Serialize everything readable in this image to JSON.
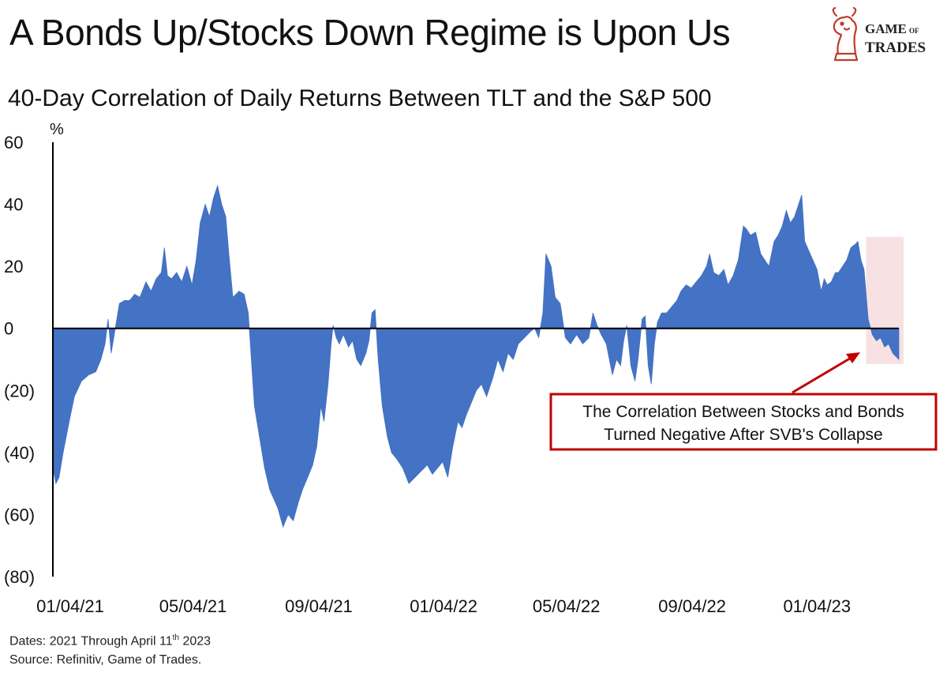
{
  "title": "A Bonds Up/Stocks Down Regime is Upon Us",
  "subtitle": "40-Day Correlation of Daily Returns Between TLT and the S&P 500",
  "logo": {
    "line1": "GAME",
    "line1_small": "OF",
    "line2": "TRADES"
  },
  "footer": {
    "dates_prefix": "Dates: 2021 Through April 11",
    "dates_sup": "th",
    "dates_suffix": " 2023",
    "source": "Source: Refinitiv, Game of Trades."
  },
  "annotation": {
    "line1": "The Correlation Between Stocks and Bonds",
    "line2": "Turned Negative After SVB's Collapse"
  },
  "colors": {
    "area": "#4472C4",
    "highlight": "#F4D7D9",
    "annotation_border": "#C00000",
    "axis": "#000000"
  },
  "chart_data": {
    "type": "area",
    "title": "40-Day Correlation of Daily Returns Between TLT and the S&P 500",
    "ylabel": "%",
    "ylim": [
      -80,
      60
    ],
    "y_ticks": [
      60,
      40,
      20,
      0,
      -20,
      -40,
      -60,
      -80
    ],
    "y_tick_labels": [
      "60",
      "40",
      "20",
      "0",
      "(20)",
      "(40)",
      "(60)",
      "(80)"
    ],
    "x_ticks": [
      "2021-01-04",
      "2021-05-04",
      "2021-09-04",
      "2022-01-04",
      "2022-05-04",
      "2022-09-04",
      "2023-01-04"
    ],
    "x_tick_labels": [
      "01/04/21",
      "05/04/21",
      "09/04/21",
      "01/04/22",
      "05/04/22",
      "09/04/22",
      "01/04/23"
    ],
    "highlight_range": [
      "2023-03-10",
      "2023-04-11"
    ],
    "series": [
      {
        "values": [
          [
            "2021-01-04",
            -45
          ],
          [
            "2021-01-07",
            -50
          ],
          [
            "2021-01-10",
            -48
          ],
          [
            "2021-01-14",
            -40
          ],
          [
            "2021-01-20",
            -30
          ],
          [
            "2021-01-25",
            -22
          ],
          [
            "2021-02-01",
            -17
          ],
          [
            "2021-02-08",
            -15
          ],
          [
            "2021-02-15",
            -14
          ],
          [
            "2021-02-20",
            -10
          ],
          [
            "2021-02-24",
            -5
          ],
          [
            "2021-02-27",
            3
          ],
          [
            "2021-03-02",
            -8
          ],
          [
            "2021-03-06",
            0
          ],
          [
            "2021-03-10",
            8
          ],
          [
            "2021-03-15",
            9
          ],
          [
            "2021-03-20",
            9
          ],
          [
            "2021-03-25",
            11
          ],
          [
            "2021-03-30",
            10
          ],
          [
            "2021-04-05",
            15
          ],
          [
            "2021-04-10",
            12
          ],
          [
            "2021-04-15",
            16
          ],
          [
            "2021-04-20",
            18
          ],
          [
            "2021-04-23",
            26
          ],
          [
            "2021-04-26",
            17
          ],
          [
            "2021-04-30",
            16
          ],
          [
            "2021-05-05",
            18
          ],
          [
            "2021-05-10",
            15
          ],
          [
            "2021-05-15",
            20
          ],
          [
            "2021-05-20",
            14
          ],
          [
            "2021-05-24",
            22
          ],
          [
            "2021-05-28",
            34
          ],
          [
            "2021-06-02",
            40
          ],
          [
            "2021-06-06",
            36
          ],
          [
            "2021-06-10",
            42
          ],
          [
            "2021-06-14",
            46
          ],
          [
            "2021-06-18",
            40
          ],
          [
            "2021-06-22",
            36
          ],
          [
            "2021-06-25",
            24
          ],
          [
            "2021-06-29",
            10
          ],
          [
            "2021-07-05",
            12
          ],
          [
            "2021-07-10",
            11
          ],
          [
            "2021-07-14",
            5
          ],
          [
            "2021-07-17",
            -10
          ],
          [
            "2021-07-20",
            -25
          ],
          [
            "2021-07-25",
            -35
          ],
          [
            "2021-07-30",
            -45
          ],
          [
            "2021-08-04",
            -52
          ],
          [
            "2021-08-08",
            -55
          ],
          [
            "2021-08-12",
            -58
          ],
          [
            "2021-08-17",
            -64
          ],
          [
            "2021-08-22",
            -60
          ],
          [
            "2021-08-27",
            -62
          ],
          [
            "2021-09-01",
            -56
          ],
          [
            "2021-09-05",
            -52
          ],
          [
            "2021-09-10",
            -48
          ],
          [
            "2021-09-15",
            -44
          ],
          [
            "2021-09-19",
            -38
          ],
          [
            "2021-09-23",
            -25
          ],
          [
            "2021-09-26",
            -30
          ],
          [
            "2021-09-30",
            -18
          ],
          [
            "2021-10-03",
            -5
          ],
          [
            "2021-10-05",
            1
          ],
          [
            "2021-10-08",
            -3
          ],
          [
            "2021-10-11",
            -5
          ],
          [
            "2021-10-15",
            -2
          ],
          [
            "2021-10-20",
            -6
          ],
          [
            "2021-10-24",
            -4
          ],
          [
            "2021-10-28",
            -10
          ],
          [
            "2021-11-01",
            -12
          ],
          [
            "2021-11-06",
            -8
          ],
          [
            "2021-11-09",
            -4
          ],
          [
            "2021-11-12",
            5
          ],
          [
            "2021-11-15",
            6
          ],
          [
            "2021-11-18",
            -10
          ],
          [
            "2021-11-22",
            -25
          ],
          [
            "2021-11-27",
            -35
          ],
          [
            "2021-12-01",
            -40
          ],
          [
            "2021-12-06",
            -42
          ],
          [
            "2021-12-12",
            -45
          ],
          [
            "2021-12-18",
            -50
          ],
          [
            "2021-12-24",
            -48
          ],
          [
            "2021-12-30",
            -46
          ],
          [
            "2022-01-05",
            -44
          ],
          [
            "2022-01-10",
            -47
          ],
          [
            "2022-01-15",
            -45
          ],
          [
            "2022-01-20",
            -43
          ],
          [
            "2022-01-25",
            -48
          ],
          [
            "2022-01-30",
            -38
          ],
          [
            "2022-02-04",
            -30
          ],
          [
            "2022-02-08",
            -32
          ],
          [
            "2022-02-12",
            -28
          ],
          [
            "2022-02-17",
            -24
          ],
          [
            "2022-02-22",
            -20
          ],
          [
            "2022-02-27",
            -18
          ],
          [
            "2022-03-04",
            -22
          ],
          [
            "2022-03-10",
            -16
          ],
          [
            "2022-03-15",
            -10
          ],
          [
            "2022-03-20",
            -14
          ],
          [
            "2022-03-25",
            -8
          ],
          [
            "2022-03-30",
            -10
          ],
          [
            "2022-04-04",
            -5
          ],
          [
            "2022-04-10",
            -3
          ],
          [
            "2022-04-16",
            -1
          ],
          [
            "2022-04-20",
            0
          ],
          [
            "2022-04-24",
            -3
          ],
          [
            "2022-04-28",
            5
          ],
          [
            "2022-05-01",
            24
          ],
          [
            "2022-05-06",
            20
          ],
          [
            "2022-05-10",
            10
          ],
          [
            "2022-05-15",
            8
          ],
          [
            "2022-05-20",
            -3
          ],
          [
            "2022-05-25",
            -5
          ],
          [
            "2022-05-31",
            -2
          ],
          [
            "2022-06-06",
            -5
          ],
          [
            "2022-06-12",
            -3
          ],
          [
            "2022-06-16",
            5
          ],
          [
            "2022-06-20",
            1
          ],
          [
            "2022-06-24",
            -2
          ],
          [
            "2022-06-29",
            -5
          ],
          [
            "2022-07-05",
            -15
          ],
          [
            "2022-07-09",
            -10
          ],
          [
            "2022-07-13",
            -12
          ],
          [
            "2022-07-16",
            -4
          ],
          [
            "2022-07-19",
            1
          ],
          [
            "2022-07-23",
            -12
          ],
          [
            "2022-07-27",
            -17
          ],
          [
            "2022-07-30",
            -10
          ],
          [
            "2022-08-03",
            3
          ],
          [
            "2022-08-06",
            4
          ],
          [
            "2022-08-09",
            -12
          ],
          [
            "2022-08-12",
            -18
          ],
          [
            "2022-08-15",
            -5
          ],
          [
            "2022-08-18",
            2
          ],
          [
            "2022-08-22",
            5
          ],
          [
            "2022-08-27",
            5
          ],
          [
            "2022-09-01",
            7
          ],
          [
            "2022-09-06",
            9
          ],
          [
            "2022-09-10",
            12
          ],
          [
            "2022-09-15",
            14
          ],
          [
            "2022-09-20",
            13
          ],
          [
            "2022-09-25",
            15
          ],
          [
            "2022-09-30",
            17
          ],
          [
            "2022-10-05",
            20
          ],
          [
            "2022-10-08",
            24
          ],
          [
            "2022-10-12",
            18
          ],
          [
            "2022-10-17",
            17
          ],
          [
            "2022-10-22",
            19
          ],
          [
            "2022-10-26",
            14
          ],
          [
            "2022-10-31",
            17
          ],
          [
            "2022-11-05",
            22
          ],
          [
            "2022-11-10",
            33
          ],
          [
            "2022-11-13",
            32
          ],
          [
            "2022-11-17",
            30
          ],
          [
            "2022-11-22",
            31
          ],
          [
            "2022-11-27",
            24
          ],
          [
            "2022-12-01",
            22
          ],
          [
            "2022-12-05",
            20
          ],
          [
            "2022-12-10",
            28
          ],
          [
            "2022-12-14",
            30
          ],
          [
            "2022-12-18",
            33
          ],
          [
            "2022-12-22",
            38
          ],
          [
            "2022-12-26",
            34
          ],
          [
            "2022-12-30",
            36
          ],
          [
            "2023-01-03",
            40
          ],
          [
            "2023-01-06",
            43
          ],
          [
            "2023-01-09",
            28
          ],
          [
            "2023-01-13",
            25
          ],
          [
            "2023-01-17",
            22
          ],
          [
            "2023-01-21",
            19
          ],
          [
            "2023-01-25",
            12
          ],
          [
            "2023-01-28",
            16
          ],
          [
            "2023-01-31",
            14
          ],
          [
            "2023-02-04",
            15
          ],
          [
            "2023-02-08",
            18
          ],
          [
            "2023-02-11",
            18
          ],
          [
            "2023-02-15",
            20
          ],
          [
            "2023-02-19",
            22
          ],
          [
            "2023-02-23",
            26
          ],
          [
            "2023-02-27",
            27
          ],
          [
            "2023-03-02",
            28
          ],
          [
            "2023-03-05",
            22
          ],
          [
            "2023-03-08",
            19
          ],
          [
            "2023-03-12",
            3
          ],
          [
            "2023-03-16",
            -2
          ],
          [
            "2023-03-20",
            -4
          ],
          [
            "2023-03-24",
            -3
          ],
          [
            "2023-03-28",
            -6
          ],
          [
            "2023-04-01",
            -5
          ],
          [
            "2023-04-05",
            -8
          ],
          [
            "2023-04-11",
            -10
          ]
        ]
      }
    ]
  }
}
